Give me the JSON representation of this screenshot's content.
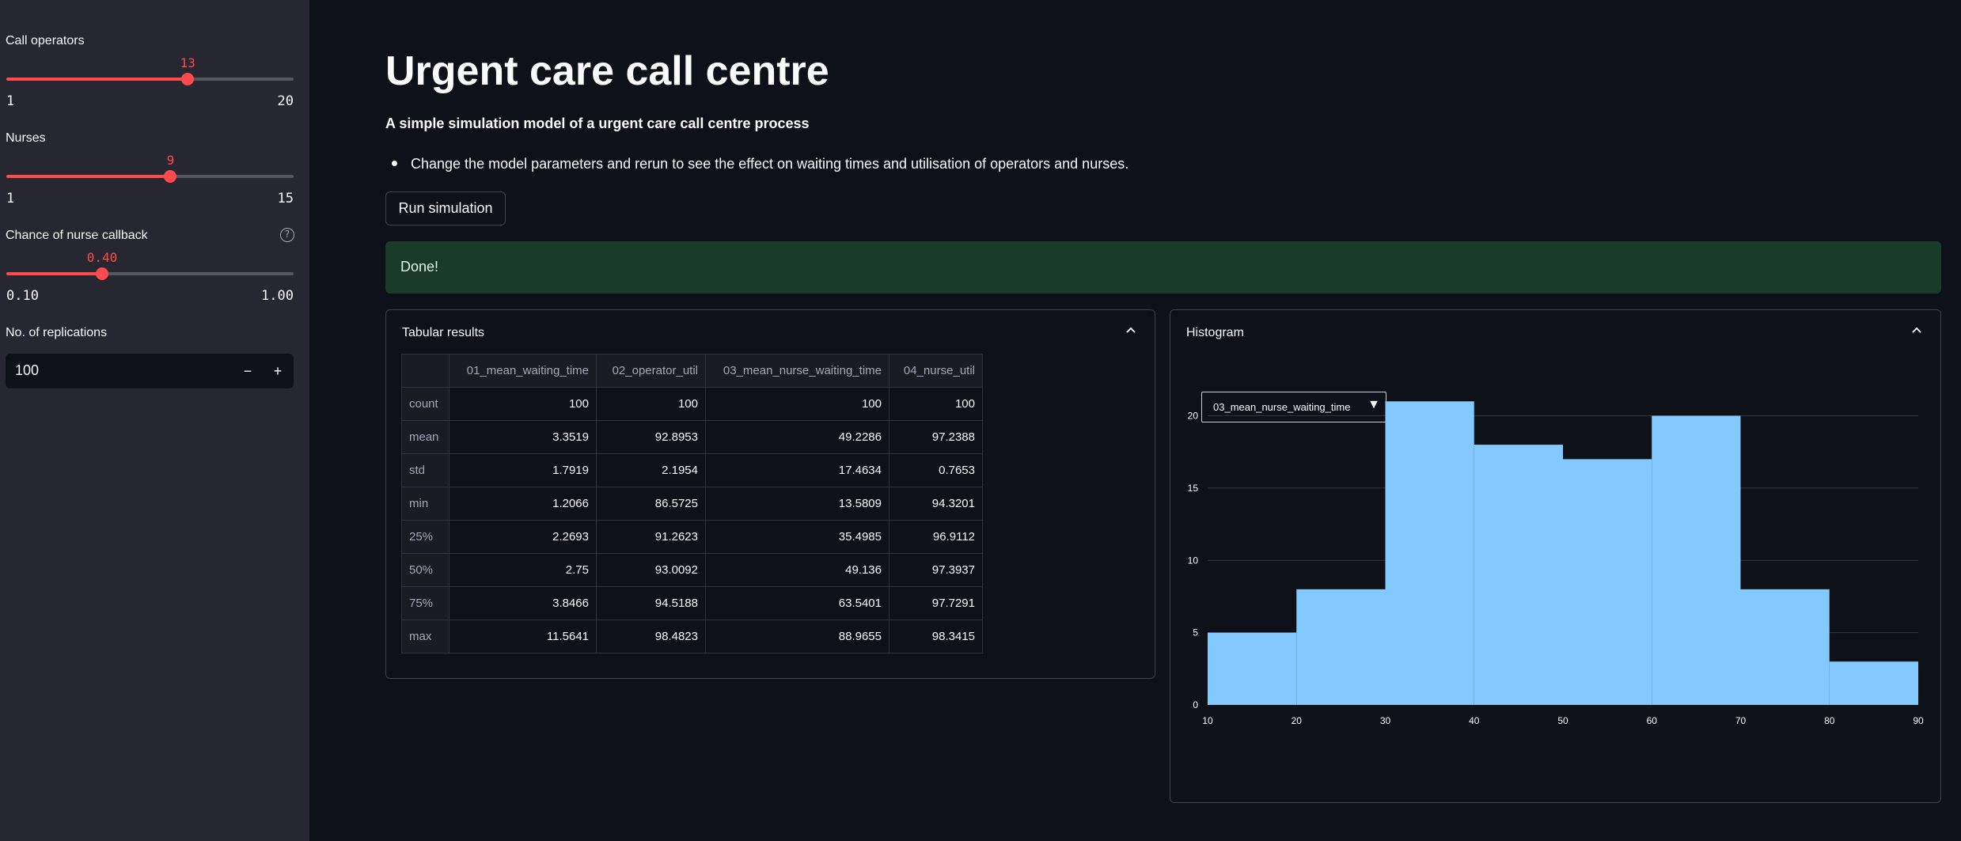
{
  "sidebar": {
    "operators": {
      "label": "Call operators",
      "value": "13",
      "min": "1",
      "max": "20",
      "fraction": 0.6316
    },
    "nurses": {
      "label": "Nurses",
      "value": "9",
      "min": "1",
      "max": "15",
      "fraction": 0.5714
    },
    "callback": {
      "label": "Chance of nurse callback",
      "value": "0.40",
      "min": "0.10",
      "max": "1.00",
      "fraction": 0.3333,
      "help_icon": "help-circle-icon"
    },
    "replications": {
      "label": "No. of replications",
      "value": "100",
      "minus": "−",
      "plus": "+"
    }
  },
  "main": {
    "title": "Urgent care call centre",
    "subtitle": "A simple simulation model of a urgent care call centre process",
    "bullet": "Change the model parameters and rerun to see the effect on waiting times and utilisation of operators and nurses.",
    "run_button": "Run simulation",
    "alert": "Done!"
  },
  "table_expander": {
    "title": "Tabular results",
    "columns": [
      "",
      "01_mean_waiting_time",
      "02_operator_util",
      "03_mean_nurse_waiting_time",
      "04_nurse_util"
    ],
    "rows": [
      [
        "count",
        "100",
        "100",
        "100",
        "100"
      ],
      [
        "mean",
        "3.3519",
        "92.8953",
        "49.2286",
        "97.2388"
      ],
      [
        "std",
        "1.7919",
        "2.1954",
        "17.4634",
        "0.7653"
      ],
      [
        "min",
        "1.2066",
        "86.5725",
        "13.5809",
        "94.3201"
      ],
      [
        "25%",
        "2.2693",
        "91.2623",
        "35.4985",
        "96.9112"
      ],
      [
        "50%",
        "2.75",
        "93.0092",
        "49.136",
        "97.3937"
      ],
      [
        "75%",
        "3.8466",
        "94.5188",
        "63.5401",
        "97.7291"
      ],
      [
        "max",
        "11.5641",
        "98.4823",
        "88.9655",
        "98.3415"
      ]
    ]
  },
  "histogram_expander": {
    "title": "Histogram",
    "dropdown_value": "03_mean_nurse_waiting_time",
    "dropdown_arrow": "▼"
  },
  "colors": {
    "accent": "#ff4b4b",
    "bar": "#83c9ff",
    "success_bg": "#1a3a2a"
  },
  "chart_data": {
    "type": "bar",
    "bins": [
      [
        10,
        20
      ],
      [
        20,
        30
      ],
      [
        30,
        40
      ],
      [
        40,
        50
      ],
      [
        50,
        60
      ],
      [
        60,
        70
      ],
      [
        70,
        80
      ],
      [
        80,
        90
      ]
    ],
    "values": [
      5,
      8,
      21,
      18,
      17,
      20,
      8,
      3
    ],
    "xlim": [
      10,
      90
    ],
    "ylim": [
      0,
      22
    ],
    "xticks": [
      10,
      20,
      30,
      40,
      50,
      60,
      70,
      80,
      90
    ],
    "yticks": [
      0,
      5,
      10,
      15,
      20
    ],
    "grid": true
  }
}
